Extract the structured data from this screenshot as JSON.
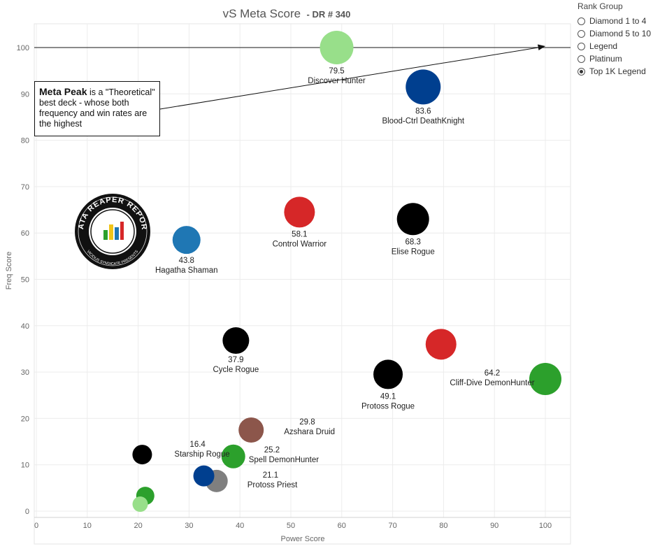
{
  "chart_data": {
    "type": "scatter",
    "title": "vS Meta Score",
    "subtitle": "- DR # 340",
    "xlabel": "Power Score",
    "ylabel": "Freq Score",
    "xlim": [
      0,
      105
    ],
    "ylim": [
      -1,
      105
    ],
    "xticks": [
      0,
      10,
      20,
      30,
      40,
      50,
      60,
      70,
      80,
      90,
      100
    ],
    "yticks": [
      0,
      10,
      20,
      30,
      40,
      50,
      60,
      70,
      80,
      90,
      100
    ],
    "grid": true,
    "reference_line_y": 100,
    "points": [
      {
        "x": 59,
        "y": 100,
        "r": 24,
        "color": "#98df8a",
        "value_label": "79.5",
        "name": "Discover Hunter"
      },
      {
        "x": 76,
        "y": 91.5,
        "r": 25,
        "color": "#003f8f",
        "value_label": "83.6",
        "name": "Blood-Ctrl DeathKnight"
      },
      {
        "x": 51.7,
        "y": 64.5,
        "r": 22,
        "color": "#d62728",
        "value_label": "58.1",
        "name": "Control Warrior"
      },
      {
        "x": 74,
        "y": 63,
        "r": 23,
        "color": "#000000",
        "value_label": "68.3",
        "name": "Elise Rogue"
      },
      {
        "x": 29.5,
        "y": 58.5,
        "r": 20,
        "color": "#1f77b4",
        "value_label": "43.8",
        "name": "Hagatha Shaman"
      },
      {
        "x": 39.2,
        "y": 36.8,
        "r": 19,
        "color": "#000000",
        "value_label": "37.9",
        "name": "Cycle Rogue"
      },
      {
        "x": 79.5,
        "y": 36,
        "r": 22,
        "color": "#d62728",
        "value_label": "",
        "name": ""
      },
      {
        "x": 69.1,
        "y": 29.5,
        "r": 21,
        "color": "#000000",
        "value_label": "49.1",
        "name": "Protoss Rogue"
      },
      {
        "x": 100,
        "y": 28.5,
        "r": 23,
        "color": "#2ca02c",
        "value_label": "64.2",
        "name": "Cliff-Dive DemonHunter"
      },
      {
        "x": 42.2,
        "y": 17.5,
        "r": 18,
        "color": "#8c564b",
        "value_label": "29.8",
        "name": "Azshara Druid"
      },
      {
        "x": 38.7,
        "y": 11.8,
        "r": 17,
        "color": "#2ca02c",
        "value_label": "25.2",
        "name": "Spell DemonHunter"
      },
      {
        "x": 20.8,
        "y": 12.2,
        "r": 14,
        "color": "#000000",
        "value_label": "16.4",
        "name": "Starship Rogue"
      },
      {
        "x": 35.4,
        "y": 6.5,
        "r": 16,
        "color": "#7f7f7f",
        "value_label": "21.1",
        "name": "Protoss Priest"
      },
      {
        "x": 32.9,
        "y": 7.6,
        "r": 15,
        "color": "#003f8f",
        "value_label": "",
        "name": ""
      },
      {
        "x": 21.4,
        "y": 3.3,
        "r": 13,
        "color": "#2ca02c",
        "value_label": "",
        "name": ""
      },
      {
        "x": 20.4,
        "y": 1.5,
        "r": 11,
        "color": "#98df8a",
        "value_label": "",
        "name": ""
      }
    ]
  },
  "legend": {
    "title": "Rank Group",
    "options": [
      {
        "label": "Diamond 1 to 4",
        "selected": false
      },
      {
        "label": "Diamond 5 to 10",
        "selected": false
      },
      {
        "label": "Legend",
        "selected": false
      },
      {
        "label": "Platinum",
        "selected": false
      },
      {
        "label": "Top 1K Legend",
        "selected": true
      }
    ]
  },
  "annotation": {
    "heading": "Meta Peak",
    "text": " is a \"Theoretical\" best deck - whose both frequency and win rates are the highest"
  },
  "logo": {
    "text": "DATA REAPER REPORT",
    "subtext": "VICIOUS SYNDICATE PRESENTS"
  }
}
